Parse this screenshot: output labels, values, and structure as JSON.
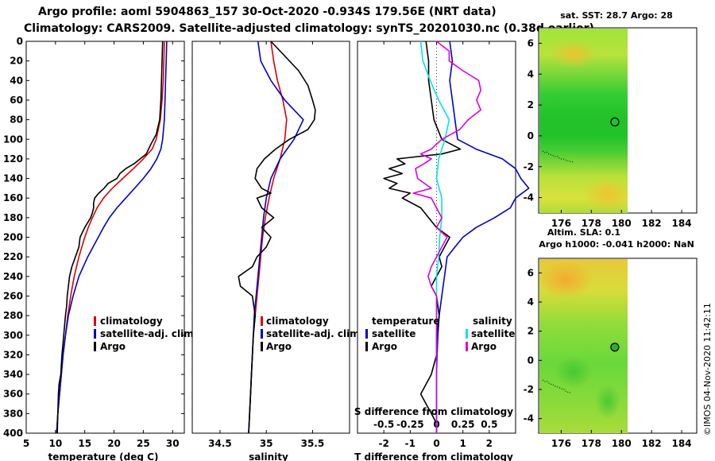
{
  "header": {
    "line1": "Argo profile: aoml 5904863_157 30-Oct-2020 -0.934S 179.56E (NRT data)",
    "line2": "Climatology: CARS2009. Satellite-adjusted climatology: synTS_20201030.nc (0.38d earlier)"
  },
  "colors": {
    "climatology": "#dd0000",
    "satellite": "#0000cc",
    "argo": "#000000",
    "sal_satellite": "#00e5e5",
    "sal_argo": "#dd00dd"
  },
  "credit": "©IMOS 04-Nov-2020 11:42:11",
  "chart_data": [
    {
      "type": "line",
      "id": "temperature",
      "xlabel": "temperature (deg C)",
      "xlim": [
        5,
        32
      ],
      "ylim": [
        400,
        0
      ],
      "xticks": [
        "5",
        "10",
        "15",
        "20",
        "25",
        "30"
      ],
      "yticks": [
        "0",
        "20",
        "40",
        "60",
        "80",
        "100",
        "120",
        "140",
        "160",
        "180",
        "200",
        "220",
        "240",
        "260",
        "280",
        "300",
        "320",
        "340",
        "360",
        "380",
        "400"
      ],
      "legend": [
        "climatology",
        "satellite-adj. clim.",
        "Argo"
      ],
      "series": [
        {
          "name": "climatology",
          "depth": [
            0,
            20,
            40,
            60,
            80,
            100,
            110,
            120,
            130,
            140,
            150,
            160,
            170,
            180,
            190,
            200,
            220,
            240,
            260,
            280,
            300,
            320,
            340,
            360,
            380,
            400
          ],
          "values": [
            28.6,
            28.5,
            28.4,
            28.2,
            27.9,
            27.2,
            26.5,
            25.0,
            23.3,
            21.5,
            19.7,
            18.2,
            17.1,
            16.3,
            15.6,
            15.0,
            14.0,
            13.2,
            12.6,
            12.1,
            11.7,
            11.3,
            11.0,
            10.7,
            10.4,
            10.2
          ]
        },
        {
          "name": "satellite-adj. clim.",
          "depth": [
            0,
            20,
            40,
            60,
            80,
            100,
            110,
            120,
            130,
            140,
            150,
            160,
            170,
            180,
            190,
            200,
            220,
            240,
            260,
            280,
            300,
            320,
            340,
            360,
            380,
            400
          ],
          "values": [
            29.0,
            28.9,
            28.8,
            28.7,
            28.6,
            28.3,
            28.0,
            27.3,
            26.3,
            25.0,
            23.5,
            22.0,
            20.5,
            19.2,
            18.2,
            17.3,
            15.5,
            14.0,
            13.0,
            12.2,
            11.7,
            11.3,
            11.0,
            10.7,
            10.4,
            10.2
          ]
        },
        {
          "name": "Argo",
          "depth": [
            0,
            20,
            40,
            60,
            80,
            95,
            105,
            115,
            125,
            130,
            135,
            140,
            145,
            150,
            155,
            160,
            165,
            170,
            175,
            180,
            190,
            200,
            210,
            220,
            230,
            240,
            250,
            260,
            270,
            280,
            300,
            320,
            340,
            350,
            360,
            380,
            400
          ],
          "values": [
            28.3,
            28.2,
            28.1,
            28.0,
            27.8,
            27.2,
            26.3,
            25.5,
            23.4,
            22.0,
            21.0,
            20.5,
            19.0,
            18.3,
            17.4,
            16.7,
            16.5,
            16.5,
            16.3,
            16.0,
            15.0,
            14.2,
            14.0,
            13.4,
            12.8,
            12.4,
            12.2,
            12.0,
            11.9,
            11.7,
            11.4,
            11.1,
            10.9,
            10.6,
            10.5,
            10.4,
            10.3
          ]
        }
      ]
    },
    {
      "type": "line",
      "id": "salinity",
      "xlabel": "salinity",
      "xlim": [
        34.2,
        35.9
      ],
      "ylim": [
        400,
        0
      ],
      "xticks": [
        "34.5",
        "35",
        "35.5"
      ],
      "legend": [
        "climatology",
        "satellite-adj. clim.",
        "Argo"
      ],
      "series": [
        {
          "name": "climatology",
          "depth": [
            0,
            20,
            40,
            60,
            80,
            100,
            120,
            140,
            160,
            180,
            200,
            220,
            240,
            260,
            280,
            300,
            320,
            340,
            360,
            380,
            400
          ],
          "values": [
            35.05,
            35.08,
            35.12,
            35.18,
            35.22,
            35.2,
            35.15,
            35.08,
            35.03,
            34.99,
            34.96,
            34.94,
            34.92,
            34.9,
            34.88,
            34.86,
            34.85,
            34.84,
            34.83,
            34.82,
            34.81
          ]
        },
        {
          "name": "satellite-adj. clim.",
          "depth": [
            0,
            20,
            40,
            60,
            80,
            100,
            120,
            140,
            160,
            180,
            200,
            220,
            240,
            260,
            280,
            300,
            320,
            340,
            360,
            380,
            400
          ],
          "values": [
            34.91,
            34.94,
            35.05,
            35.2,
            35.4,
            35.3,
            35.15,
            35.05,
            35.0,
            34.97,
            34.95,
            34.93,
            34.91,
            34.89,
            34.87,
            34.86,
            34.85,
            34.84,
            34.83,
            34.82,
            34.81
          ]
        },
        {
          "name": "Argo",
          "depth": [
            0,
            15,
            30,
            45,
            60,
            70,
            80,
            90,
            100,
            110,
            120,
            130,
            140,
            150,
            155,
            160,
            170,
            180,
            190,
            200,
            210,
            220,
            230,
            240,
            250,
            260,
            280,
            300,
            320,
            340,
            360,
            380,
            400
          ],
          "values": [
            35.05,
            35.2,
            35.35,
            35.45,
            35.5,
            35.53,
            35.52,
            35.45,
            35.25,
            35.1,
            34.98,
            34.9,
            34.88,
            34.95,
            35.05,
            34.9,
            34.95,
            35.08,
            34.95,
            35.05,
            35.0,
            34.9,
            34.85,
            34.7,
            34.72,
            34.85,
            34.88,
            34.86,
            34.85,
            34.84,
            34.83,
            34.82,
            34.81
          ]
        }
      ]
    },
    {
      "type": "line",
      "id": "difference",
      "xlabel": "T difference from climatology",
      "xlabel2": "S difference from climatology",
      "xlim": [
        -3,
        3
      ],
      "ylim": [
        400,
        0
      ],
      "xticks": [
        "-2",
        "-1",
        "0",
        "1",
        "2"
      ],
      "xticks2": [
        "-0.5",
        "-0.25",
        "0",
        "0.25",
        "0.5"
      ],
      "legend_titles": [
        "temperature",
        "salinity"
      ],
      "legend_left": [
        "satellite",
        "Argo"
      ],
      "legend_right": [
        "satellite",
        "Argo"
      ],
      "series": [
        {
          "name": "T satellite",
          "depth": [
            0,
            20,
            40,
            60,
            80,
            100,
            110,
            120,
            130,
            140,
            150,
            160,
            170,
            180,
            190,
            200,
            210,
            220,
            240,
            260,
            280,
            300,
            320,
            340,
            360,
            380,
            400
          ],
          "values": [
            0.5,
            0.6,
            0.5,
            0.6,
            0.7,
            0.8,
            1.5,
            2.5,
            3.0,
            3.2,
            3.5,
            3.0,
            2.8,
            2.2,
            1.5,
            1.0,
            0.7,
            0.4,
            0.3,
            0.2,
            0.1,
            0.05,
            0.02,
            0.0,
            0.0,
            0.0,
            0.0
          ]
        },
        {
          "name": "T Argo",
          "depth": [
            0,
            20,
            40,
            60,
            80,
            100,
            110,
            115,
            120,
            125,
            130,
            135,
            140,
            145,
            150,
            155,
            160,
            170,
            180,
            190,
            200,
            210,
            220,
            230,
            240,
            250,
            260,
            280,
            300,
            320,
            340,
            360,
            370,
            380,
            390,
            400
          ],
          "values": [
            -0.4,
            -0.3,
            -0.3,
            -0.2,
            -0.1,
            0.2,
            0.9,
            0.2,
            -1.5,
            -1.2,
            -1.8,
            -1.3,
            -2.0,
            -1.5,
            -1.8,
            -1.0,
            -1.3,
            -0.6,
            -0.3,
            0.0,
            0.5,
            0.3,
            0.1,
            0.2,
            0.0,
            -0.2,
            0.0,
            0.1,
            0.0,
            0.0,
            -0.2,
            -0.6,
            -0.4,
            -0.2,
            0.0,
            0.0
          ]
        },
        {
          "name": "S satellite",
          "depth": [
            0,
            20,
            40,
            60,
            80,
            100,
            120,
            140,
            160,
            180,
            200,
            220,
            240,
            260,
            280,
            300,
            320,
            340,
            360,
            380,
            400
          ],
          "values": [
            -0.15,
            -0.13,
            -0.06,
            0.02,
            0.12,
            0.08,
            0.02,
            0.0,
            0.05,
            0.05,
            0.03,
            0.02,
            0.0,
            0.0,
            0.0,
            0.0,
            0.0,
            0.0,
            0.0,
            0.0,
            0.0
          ]
        },
        {
          "name": "S Argo",
          "depth": [
            0,
            10,
            20,
            30,
            40,
            50,
            60,
            70,
            80,
            90,
            100,
            110,
            115,
            120,
            125,
            130,
            140,
            150,
            155,
            160,
            170,
            180,
            190,
            200,
            210,
            220,
            230,
            240,
            250,
            260,
            280,
            300,
            320,
            340,
            360,
            380,
            400
          ],
          "values": [
            0.0,
            0.12,
            0.12,
            0.25,
            0.4,
            0.42,
            0.38,
            0.42,
            0.3,
            0.22,
            0.05,
            -0.05,
            -0.15,
            -0.05,
            -0.12,
            -0.2,
            -0.18,
            -0.05,
            -0.22,
            -0.05,
            0.0,
            0.05,
            0.0,
            0.1,
            0.05,
            0.0,
            -0.05,
            -0.08,
            -0.05,
            0.0,
            0.0,
            0.0,
            0.0,
            0.0,
            0.0,
            0.0,
            0.0
          ]
        }
      ]
    },
    {
      "type": "heatmap",
      "id": "sst_map",
      "title": "sat. SST: 28.7 Argo: 28",
      "xticks": [
        "176",
        "178",
        "180",
        "182",
        "184"
      ],
      "yticks": [
        "6",
        "4",
        "2",
        "0",
        "-2",
        "-4"
      ],
      "xlim": [
        174.5,
        185
      ],
      "ylim": [
        -5,
        7
      ],
      "data_xlim": [
        174.5,
        180
      ],
      "marker": {
        "lon": 179.56,
        "lat": 0.9
      }
    },
    {
      "type": "heatmap",
      "id": "sla_map",
      "title": "Altim. SLA: 0.1",
      "subtitle": "Argo h1000: -0.041 h2000: NaN",
      "xticks": [
        "176",
        "178",
        "180",
        "182",
        "184"
      ],
      "yticks": [
        "6",
        "4",
        "2",
        "0",
        "-2",
        "-4"
      ],
      "xlim": [
        174.5,
        185
      ],
      "ylim": [
        -5,
        7
      ],
      "data_xlim": [
        174.5,
        180
      ],
      "marker": {
        "lon": 179.56,
        "lat": 0.9
      }
    }
  ]
}
